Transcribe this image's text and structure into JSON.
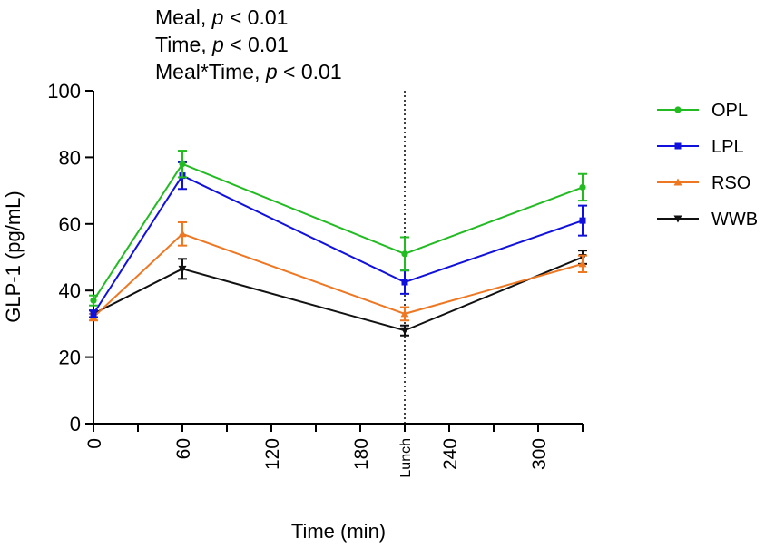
{
  "chart_data": {
    "type": "line",
    "stats_annotations": [
      {
        "term": "Meal",
        "p_label": "p",
        "comparison": "< 0.01"
      },
      {
        "term": "Time",
        "p_label": "p",
        "comparison": "< 0.01"
      },
      {
        "term": "Meal*Time",
        "p_label": "p",
        "comparison": "< 0.01"
      }
    ],
    "xlabel": "Time (min)",
    "ylabel": "GLP-1 (pg/mL)",
    "xlim": [
      0,
      330
    ],
    "ylim": [
      0,
      100
    ],
    "y_ticks": [
      "0",
      "20",
      "40",
      "60",
      "80",
      "100"
    ],
    "y_tick_values": [
      0,
      20,
      40,
      60,
      80,
      100
    ],
    "x_ticks": [
      {
        "value": 0,
        "label": "0"
      },
      {
        "value": 60,
        "label": "60"
      },
      {
        "value": 120,
        "label": "120"
      },
      {
        "value": 180,
        "label": "180"
      },
      {
        "value": 210,
        "label": "Lunch"
      },
      {
        "value": 240,
        "label": "240"
      },
      {
        "value": 300,
        "label": "300"
      }
    ],
    "x_minor_ticks": [
      30,
      90,
      150,
      270,
      330
    ],
    "reference_line": {
      "x": 210,
      "label": "Lunch",
      "style": "dotted"
    },
    "x": [
      0,
      60,
      210,
      330
    ],
    "series": [
      {
        "name": "OPL",
        "color": "#22bb22",
        "marker": "circle",
        "values": [
          37,
          78,
          51,
          71
        ],
        "errors": [
          1.5,
          4,
          5,
          4
        ]
      },
      {
        "name": "LPL",
        "color": "#1111dd",
        "marker": "square",
        "values": [
          33,
          74.5,
          42.5,
          61
        ],
        "errors": [
          1,
          4,
          3.5,
          4.5
        ]
      },
      {
        "name": "RSO",
        "color": "#ee7722",
        "marker": "triangle-up",
        "values": [
          32,
          57,
          33,
          48
        ],
        "errors": [
          1,
          3.5,
          2,
          2.5
        ]
      },
      {
        "name": "WWB",
        "color": "#111111",
        "marker": "triangle-down",
        "values": [
          33,
          46.5,
          28,
          50
        ],
        "errors": [
          1,
          3,
          1.5,
          2
        ]
      }
    ]
  }
}
